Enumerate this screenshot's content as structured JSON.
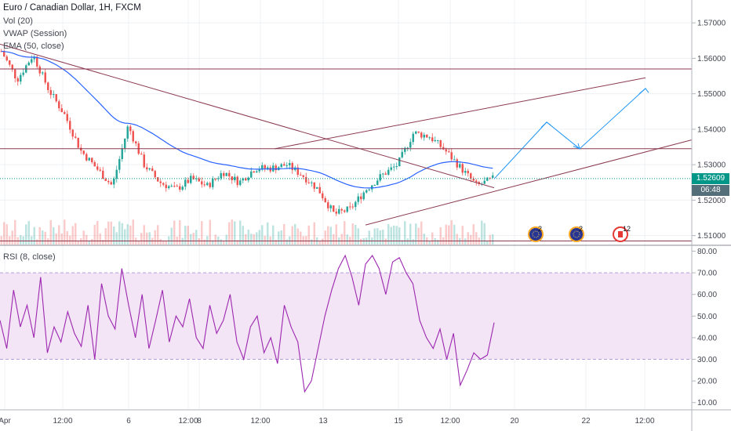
{
  "header": {
    "title": "Euro / Canadian Dollar, 1H, FXCM",
    "indicators": [
      "Vol (20)",
      "VWAP (Session)",
      "EMA (50, close)"
    ]
  },
  "rsi_panel": {
    "label": "RSI (8, close)"
  },
  "colors": {
    "up": "#26a69a",
    "down": "#ef5350",
    "trendline": "#8b3a50",
    "projection": "#2196f3",
    "ema": "#2962ff",
    "vwap": "#1e88e5",
    "rsi": "#9c27b0",
    "rsi_band": "#f3e5f5",
    "last_price_badge": "#009688",
    "countdown_badge": "#546e7a"
  },
  "badges": {
    "last_price": "1.52609",
    "countdown": "06:48"
  },
  "events": [
    {
      "icon": "eu-flag-icon",
      "count": "2"
    },
    {
      "icon": "eu-flag-icon",
      "count": "2"
    },
    {
      "icon": "canada-flag-icon",
      "count": "12"
    }
  ],
  "chart_data": [
    {
      "type": "candlestick",
      "title": "Euro / Canadian Dollar, 1H, FXCM",
      "y_ticks": [
        "1.57000",
        "1.56000",
        "1.55000",
        "1.54000",
        "1.53000",
        "1.52000",
        "1.51000"
      ],
      "ylim": [
        1.5075,
        1.576
      ],
      "x_ticks": [
        "Apr",
        "12:00",
        "6",
        "12:00",
        "8",
        "12:00",
        "13",
        "15",
        "12:00",
        "20",
        "22",
        "12:00"
      ],
      "price_path": [
        1.562,
        1.554,
        1.561,
        1.551,
        1.544,
        1.534,
        1.529,
        1.524,
        1.541,
        1.53,
        1.525,
        1.523,
        1.526,
        1.524,
        1.528,
        1.525,
        1.529,
        1.529,
        1.53,
        1.527,
        1.523,
        1.516,
        1.5175,
        1.523,
        1.527,
        1.53,
        1.539,
        1.538,
        1.534,
        1.529,
        1.524,
        1.526
      ]
    },
    {
      "type": "line",
      "title": "RSI (8, close)",
      "y_ticks": [
        "80.00",
        "70.00",
        "60.00",
        "50.00",
        "40.00",
        "30.00",
        "20.00",
        "10.00"
      ],
      "ylim": [
        7,
        82
      ],
      "band": [
        30,
        70
      ],
      "values": [
        48,
        35,
        62,
        45,
        55,
        40,
        68,
        33,
        45,
        38,
        52,
        42,
        36,
        55,
        30,
        65,
        50,
        44,
        72,
        55,
        40,
        60,
        35,
        48,
        62,
        38,
        50,
        45,
        58,
        40,
        35,
        55,
        42,
        48,
        60,
        38,
        30,
        45,
        50,
        33,
        40,
        28,
        55,
        45,
        38,
        15,
        20,
        35,
        50,
        62,
        72,
        78,
        68,
        55,
        74,
        78,
        72,
        60,
        75,
        77,
        70,
        65,
        48,
        40,
        35,
        44,
        30,
        42,
        18,
        25,
        33,
        30,
        32,
        47
      ]
    }
  ]
}
